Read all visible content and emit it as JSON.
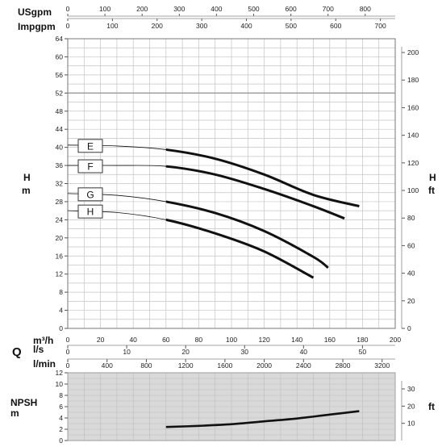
{
  "chart_data": [
    {
      "type": "line",
      "units_top_1": "USgpm",
      "units_top_2": "Impgpm",
      "usgpm_ticks": [
        "0",
        "100",
        "200",
        "300",
        "400",
        "500",
        "600",
        "700",
        "800"
      ],
      "impgpm_ticks": [
        "0",
        "100",
        "200",
        "300",
        "400",
        "500",
        "600",
        "700"
      ],
      "ylabel_left": "H\nm",
      "ylabel_right": "H\nft",
      "ylim": [
        0,
        64
      ],
      "y_ticks_m": [
        "0",
        "4",
        "8",
        "12",
        "16",
        "20",
        "24",
        "28",
        "32",
        "36",
        "40",
        "44",
        "48",
        "52",
        "56",
        "60",
        "64"
      ],
      "y_ticks_ft": [
        "0",
        "20",
        "40",
        "60",
        "80",
        "100",
        "120",
        "140",
        "160",
        "180",
        "200"
      ],
      "x_ticks_m3h": [
        "0",
        "20",
        "40",
        "60",
        "80",
        "100",
        "120",
        "140",
        "160",
        "180",
        "200"
      ],
      "reference_line_m": 52,
      "grid": true,
      "series": [
        {
          "name": "E",
          "x": [
            0,
            30,
            60,
            90,
            120,
            150,
            178
          ],
          "values": [
            40.5,
            40.3,
            39.5,
            37.5,
            34.0,
            29.5,
            27.0
          ]
        },
        {
          "name": "F",
          "x": [
            0,
            30,
            60,
            90,
            120,
            150,
            169
          ],
          "values": [
            36.0,
            36.0,
            35.8,
            34.0,
            30.8,
            27.0,
            24.3
          ]
        },
        {
          "name": "G",
          "x": [
            0,
            30,
            60,
            90,
            120,
            150,
            159
          ],
          "values": [
            29.8,
            29.4,
            28.0,
            25.5,
            21.5,
            15.8,
            13.4
          ]
        },
        {
          "name": "H",
          "x": [
            0,
            30,
            60,
            90,
            120,
            150
          ],
          "values": [
            26.0,
            25.6,
            24.0,
            21.0,
            17.0,
            11.2
          ]
        }
      ]
    },
    {
      "type": "line",
      "q_label": "Q",
      "m3h_label": "m³/h",
      "ls_label": "l/s",
      "lmin_label": "l/min",
      "ls_ticks": [
        "0",
        "10",
        "20",
        "30",
        "40",
        "50"
      ],
      "lmin_ticks": [
        "0",
        "400",
        "800",
        "1200",
        "1600",
        "2000",
        "2400",
        "2800",
        "3200"
      ],
      "ylabel_left": "NPSH\nm",
      "ylabel_right": "ft",
      "ylim": [
        0,
        12
      ],
      "y_ticks_m": [
        "0",
        "2",
        "4",
        "6",
        "8",
        "10",
        "12"
      ],
      "y_ticks_ft": [
        "10",
        "20",
        "30"
      ],
      "grid": true,
      "series": [
        {
          "x": [
            60,
            80,
            100,
            120,
            140,
            160,
            178
          ],
          "values": [
            2.4,
            2.6,
            2.9,
            3.4,
            3.9,
            4.6,
            5.2
          ]
        }
      ]
    }
  ]
}
